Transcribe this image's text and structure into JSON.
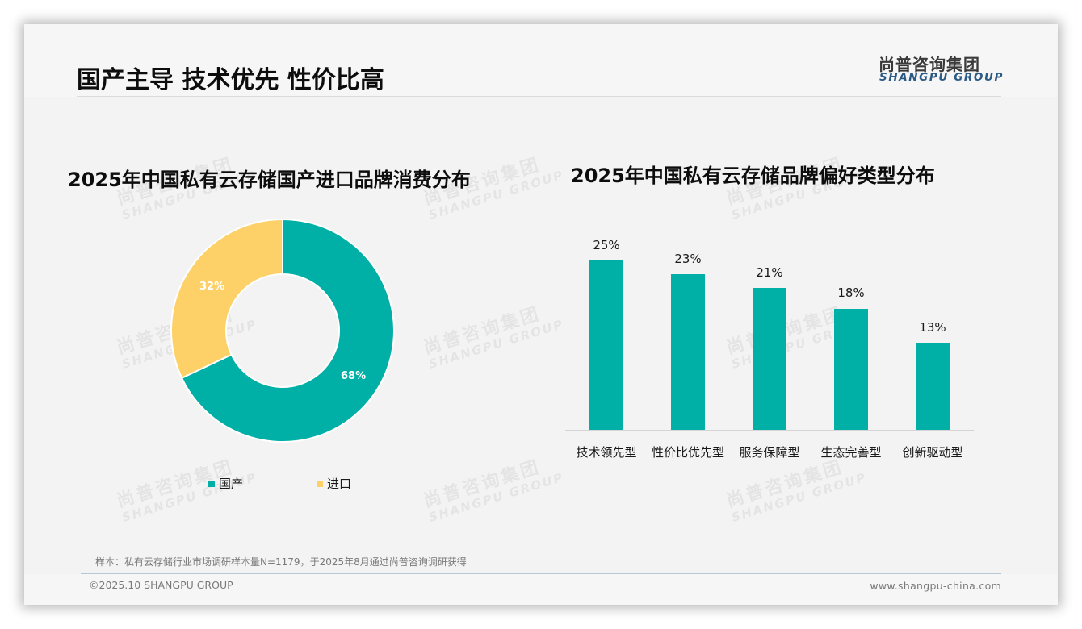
{
  "header": {
    "title": "国产主导 技术优先 性价比高",
    "logo_cn": "尚普咨询集团",
    "logo_en": "SHANGPU GROUP"
  },
  "watermark": {
    "cn": "尚普咨询集团",
    "en": "SHANGPU GROUP"
  },
  "colors": {
    "teal": "#00b0a6",
    "yellow": "#fdd168",
    "brand_blue": "#2a5a86"
  },
  "left_chart": {
    "title": "2025年中国私有云存储国产进口品牌消费分布",
    "slices": [
      {
        "label": "国产",
        "value_label": "68%",
        "color": "#00b0a6"
      },
      {
        "label": "进口",
        "value_label": "32%",
        "color": "#fdd168"
      }
    ],
    "legend": [
      {
        "label": "国产",
        "color": "#00b0a6"
      },
      {
        "label": "进口",
        "color": "#fdd168"
      }
    ]
  },
  "right_chart": {
    "title": "2025年中国私有云存储品牌偏好类型分布",
    "bars": [
      {
        "category": "技术领先型",
        "value_label": "25%"
      },
      {
        "category": "性价比优先型",
        "value_label": "23%"
      },
      {
        "category": "服务保障型",
        "value_label": "21%"
      },
      {
        "category": "生态完善型",
        "value_label": "18%"
      },
      {
        "category": "创新驱动型",
        "value_label": "13%"
      }
    ]
  },
  "chart_data": [
    {
      "type": "pie",
      "title": "2025年中国私有云存储国产进口品牌消费分布",
      "categories": [
        "国产",
        "进口"
      ],
      "values": [
        68,
        32
      ],
      "unit": "%",
      "donut": true,
      "legend_position": "bottom"
    },
    {
      "type": "bar",
      "title": "2025年中国私有云存储品牌偏好类型分布",
      "categories": [
        "技术领先型",
        "性价比优先型",
        "服务保障型",
        "生态完善型",
        "创新驱动型"
      ],
      "values": [
        25,
        23,
        21,
        18,
        13
      ],
      "unit": "%",
      "xlabel": "",
      "ylabel": "",
      "ylim": [
        0,
        25
      ],
      "grid": false
    }
  ],
  "footer": {
    "footnote": "样本：私有云存储行业市场调研样本量N=1179，于2025年8月通过尚普咨询调研获得",
    "copyright": "©2025.10 SHANGPU GROUP",
    "website": "www.shangpu-china.com"
  }
}
